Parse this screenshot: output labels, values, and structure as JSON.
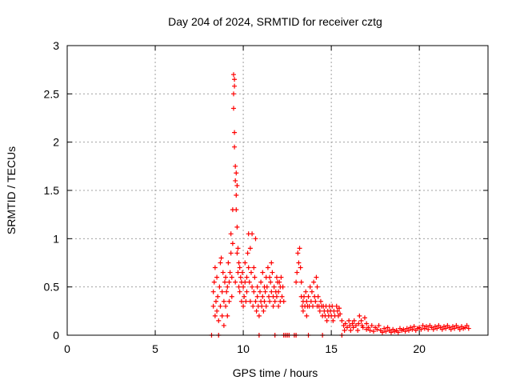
{
  "chart_data": {
    "type": "scatter",
    "title": "Day 204 of 2024, SRMTID for receiver cztg",
    "xlabel": "GPS time / hours",
    "ylabel": "SRMTID / TECUs",
    "xlim": [
      0,
      23.9
    ],
    "ylim": [
      0,
      3
    ],
    "x_ticks": [
      0,
      5,
      10,
      15,
      20
    ],
    "x_tick_labels": [
      "0",
      "5",
      "10",
      "15",
      "20"
    ],
    "y_ticks": [
      0,
      0.5,
      1,
      1.5,
      2,
      2.5,
      3
    ],
    "y_tick_labels": [
      "0",
      "0.5",
      "1",
      "1.5",
      "2",
      "2.5",
      "3"
    ],
    "grid": true,
    "marker": "plus",
    "series": [
      {
        "name": "SRMTID",
        "color": "#ff0000",
        "points": [
          [
            8.2,
            0.0
          ],
          [
            8.3,
            0.3
          ],
          [
            8.3,
            0.45
          ],
          [
            8.35,
            0.55
          ],
          [
            8.4,
            0.7
          ],
          [
            8.4,
            0.2
          ],
          [
            8.45,
            0.35
          ],
          [
            8.5,
            0.6
          ],
          [
            8.5,
            0.25
          ],
          [
            8.55,
            0.4
          ],
          [
            8.6,
            0.15
          ],
          [
            8.6,
            0.0
          ],
          [
            8.65,
            0.5
          ],
          [
            8.7,
            0.75
          ],
          [
            8.7,
            0.3
          ],
          [
            8.75,
            0.8
          ],
          [
            8.8,
            0.45
          ],
          [
            8.8,
            0.2
          ],
          [
            8.85,
            0.65
          ],
          [
            8.9,
            0.35
          ],
          [
            8.9,
            0.1
          ],
          [
            8.95,
            0.55
          ],
          [
            9.0,
            0.3
          ],
          [
            9.0,
            0.6
          ],
          [
            9.05,
            0.45
          ],
          [
            9.1,
            0.2
          ],
          [
            9.1,
            0.5
          ],
          [
            9.15,
            0.75
          ],
          [
            9.2,
            0.55
          ],
          [
            9.2,
            0.35
          ],
          [
            9.25,
            0.65
          ],
          [
            9.3,
            0.85
          ],
          [
            9.3,
            1.05
          ],
          [
            9.35,
            0.6
          ],
          [
            9.35,
            0.4
          ],
          [
            9.4,
            0.95
          ],
          [
            9.4,
            1.3
          ],
          [
            9.45,
            2.7
          ],
          [
            9.45,
            2.5
          ],
          [
            9.45,
            2.35
          ],
          [
            9.5,
            2.65
          ],
          [
            9.5,
            2.1
          ],
          [
            9.5,
            1.95
          ],
          [
            9.5,
            2.58
          ],
          [
            9.55,
            1.75
          ],
          [
            9.55,
            1.6
          ],
          [
            9.55,
            0.55
          ],
          [
            9.6,
            1.68
          ],
          [
            9.6,
            1.45
          ],
          [
            9.6,
            1.3
          ],
          [
            9.65,
            1.55
          ],
          [
            9.65,
            1.12
          ],
          [
            9.65,
            0.85
          ],
          [
            9.7,
            0.9
          ],
          [
            9.7,
            0.65
          ],
          [
            9.75,
            0.75
          ],
          [
            9.75,
            0.5
          ],
          [
            9.8,
            0.7
          ],
          [
            9.8,
            0.45
          ],
          [
            9.85,
            0.6
          ],
          [
            9.9,
            0.55
          ],
          [
            9.9,
            0.35
          ],
          [
            9.95,
            0.65
          ],
          [
            10.0,
            0.5
          ],
          [
            10.0,
            0.3
          ],
          [
            10.05,
            0.4
          ],
          [
            10.1,
            0.55
          ],
          [
            10.1,
            0.75
          ],
          [
            10.15,
            0.35
          ],
          [
            10.2,
            0.6
          ],
          [
            10.2,
            0.45
          ],
          [
            10.25,
            0.85
          ],
          [
            10.3,
            1.05
          ],
          [
            10.3,
            0.7
          ],
          [
            10.35,
            0.55
          ],
          [
            10.4,
            0.9
          ],
          [
            10.4,
            0.35
          ],
          [
            10.45,
            0.65
          ],
          [
            10.5,
            1.05
          ],
          [
            10.5,
            0.5
          ],
          [
            10.55,
            0.3
          ],
          [
            10.6,
            0.7
          ],
          [
            10.6,
            0.45
          ],
          [
            10.65,
            0.6
          ],
          [
            10.7,
            1.0
          ],
          [
            10.7,
            0.35
          ],
          [
            10.75,
            0.25
          ],
          [
            10.8,
            0.5
          ],
          [
            10.8,
            0.4
          ],
          [
            10.85,
            0.3
          ],
          [
            10.9,
            0.2
          ],
          [
            10.9,
            0.0
          ],
          [
            10.95,
            0.45
          ],
          [
            11.0,
            0.35
          ],
          [
            11.0,
            0.55
          ],
          [
            11.05,
            0.3
          ],
          [
            11.1,
            0.4
          ],
          [
            11.1,
            0.65
          ],
          [
            11.15,
            0.25
          ],
          [
            11.2,
            0.5
          ],
          [
            11.2,
            0.35
          ],
          [
            11.25,
            0.45
          ],
          [
            11.3,
            0.6
          ],
          [
            11.3,
            0.3
          ],
          [
            11.35,
            0.5
          ],
          [
            11.4,
            0.7
          ],
          [
            11.45,
            0.4
          ],
          [
            11.5,
            0.35
          ],
          [
            11.5,
            0.6
          ],
          [
            11.55,
            0.55
          ],
          [
            11.6,
            0.75
          ],
          [
            11.6,
            0.45
          ],
          [
            11.65,
            0.65
          ],
          [
            11.7,
            0.4
          ],
          [
            11.7,
            0.3
          ],
          [
            11.75,
            0.5
          ],
          [
            11.8,
            0.35
          ],
          [
            11.8,
            0.0
          ],
          [
            11.85,
            0.45
          ],
          [
            11.9,
            0.6
          ],
          [
            11.9,
            0.4
          ],
          [
            11.95,
            0.55
          ],
          [
            12.0,
            0.3
          ],
          [
            12.0,
            0.45
          ],
          [
            12.05,
            0.55
          ],
          [
            12.1,
            0.35
          ],
          [
            12.1,
            0.5
          ],
          [
            12.15,
            0.6
          ],
          [
            12.2,
            0.4
          ],
          [
            12.25,
            0.5
          ],
          [
            12.3,
            0.35
          ],
          [
            12.3,
            0.0
          ],
          [
            12.4,
            0.0
          ],
          [
            12.5,
            0.0
          ],
          [
            12.6,
            0.0
          ],
          [
            12.9,
            0.0
          ],
          [
            13.0,
            0.0
          ],
          [
            13.0,
            0.55
          ],
          [
            13.05,
            0.65
          ],
          [
            13.1,
            0.85
          ],
          [
            13.15,
            0.75
          ],
          [
            13.2,
            0.9
          ],
          [
            13.25,
            0.7
          ],
          [
            13.3,
            0.55
          ],
          [
            13.3,
            0.4
          ],
          [
            13.35,
            0.3
          ],
          [
            13.4,
            0.35
          ],
          [
            13.4,
            0.25
          ],
          [
            13.45,
            0.4
          ],
          [
            13.5,
            0.3
          ],
          [
            13.55,
            0.45
          ],
          [
            13.6,
            0.35
          ],
          [
            13.6,
            0.2
          ],
          [
            13.65,
            0.3
          ],
          [
            13.7,
            0.0
          ],
          [
            13.7,
            0.4
          ],
          [
            13.75,
            0.3
          ],
          [
            13.8,
            0.5
          ],
          [
            13.85,
            0.35
          ],
          [
            13.9,
            0.45
          ],
          [
            13.95,
            0.3
          ],
          [
            14.0,
            0.55
          ],
          [
            14.05,
            0.4
          ],
          [
            14.1,
            0.35
          ],
          [
            14.15,
            0.6
          ],
          [
            14.2,
            0.5
          ],
          [
            14.2,
            0.3
          ],
          [
            14.25,
            0.4
          ],
          [
            14.3,
            0.3
          ],
          [
            14.35,
            0.25
          ],
          [
            14.4,
            0.35
          ],
          [
            14.45,
            0.3
          ],
          [
            14.5,
            0.2
          ],
          [
            14.5,
            0.0
          ],
          [
            14.55,
            0.3
          ],
          [
            14.6,
            0.25
          ],
          [
            14.65,
            0.2
          ],
          [
            14.7,
            0.3
          ],
          [
            14.75,
            0.15
          ],
          [
            14.8,
            0.25
          ],
          [
            14.85,
            0.2
          ],
          [
            14.9,
            0.3
          ],
          [
            14.95,
            0.25
          ],
          [
            15.0,
            0.2
          ],
          [
            15.05,
            0.3
          ],
          [
            15.1,
            0.15
          ],
          [
            15.15,
            0.25
          ],
          [
            15.2,
            0.2
          ],
          [
            15.3,
            0.3
          ],
          [
            15.35,
            0.25
          ],
          [
            15.4,
            0.2
          ],
          [
            15.45,
            0.28
          ],
          [
            15.5,
            0.22
          ],
          [
            15.6,
            0.15
          ],
          [
            15.6,
            0.0
          ],
          [
            15.7,
            0.1
          ],
          [
            15.75,
            0.05
          ],
          [
            15.8,
            0.12
          ],
          [
            15.9,
            0.08
          ],
          [
            16.0,
            0.15
          ],
          [
            16.05,
            0.1
          ],
          [
            16.1,
            0.05
          ],
          [
            16.2,
            0.12
          ],
          [
            16.25,
            0.08
          ],
          [
            16.3,
            0.15
          ],
          [
            16.4,
            0.1
          ],
          [
            16.5,
            0.05
          ],
          [
            16.55,
            0.12
          ],
          [
            16.6,
            0.2
          ],
          [
            16.7,
            0.15
          ],
          [
            16.75,
            0.1
          ],
          [
            16.8,
            0.08
          ],
          [
            16.9,
            0.18
          ],
          [
            17.0,
            0.12
          ],
          [
            17.0,
            0.06
          ],
          [
            17.1,
            0.08
          ],
          [
            17.2,
            0.05
          ],
          [
            17.3,
            0.1
          ],
          [
            17.4,
            0.04
          ],
          [
            17.5,
            0.08
          ],
          [
            17.6,
            0.06
          ],
          [
            17.7,
            0.1
          ],
          [
            17.8,
            0.05
          ],
          [
            17.9,
            0.03
          ],
          [
            18.0,
            0.07
          ],
          [
            18.1,
            0.04
          ],
          [
            18.2,
            0.08
          ],
          [
            18.3,
            0.05
          ],
          [
            18.4,
            0.03
          ],
          [
            18.5,
            0.06
          ],
          [
            18.6,
            0.04
          ],
          [
            18.7,
            0.05
          ],
          [
            18.8,
            0.03
          ],
          [
            18.9,
            0.07
          ],
          [
            19.0,
            0.05
          ],
          [
            19.1,
            0.06
          ],
          [
            19.2,
            0.04
          ],
          [
            19.3,
            0.07
          ],
          [
            19.4,
            0.05
          ],
          [
            19.5,
            0.08
          ],
          [
            19.6,
            0.06
          ],
          [
            19.7,
            0.09
          ],
          [
            19.8,
            0.05
          ],
          [
            19.9,
            0.07
          ],
          [
            20.0,
            0.08
          ],
          [
            20.1,
            0.06
          ],
          [
            20.2,
            0.1
          ],
          [
            20.3,
            0.07
          ],
          [
            20.4,
            0.09
          ],
          [
            20.5,
            0.06
          ],
          [
            20.6,
            0.1
          ],
          [
            20.7,
            0.08
          ],
          [
            20.8,
            0.06
          ],
          [
            20.9,
            0.09
          ],
          [
            21.0,
            0.07
          ],
          [
            21.1,
            0.1
          ],
          [
            21.2,
            0.08
          ],
          [
            21.3,
            0.06
          ],
          [
            21.4,
            0.09
          ],
          [
            21.5,
            0.07
          ],
          [
            21.6,
            0.1
          ],
          [
            21.7,
            0.08
          ],
          [
            21.8,
            0.06
          ],
          [
            21.9,
            0.09
          ],
          [
            22.0,
            0.07
          ],
          [
            22.1,
            0.1
          ],
          [
            22.2,
            0.08
          ],
          [
            22.3,
            0.06
          ],
          [
            22.4,
            0.09
          ],
          [
            22.5,
            0.07
          ],
          [
            22.6,
            0.08
          ],
          [
            22.7,
            0.1
          ],
          [
            22.8,
            0.07
          ]
        ]
      }
    ]
  }
}
